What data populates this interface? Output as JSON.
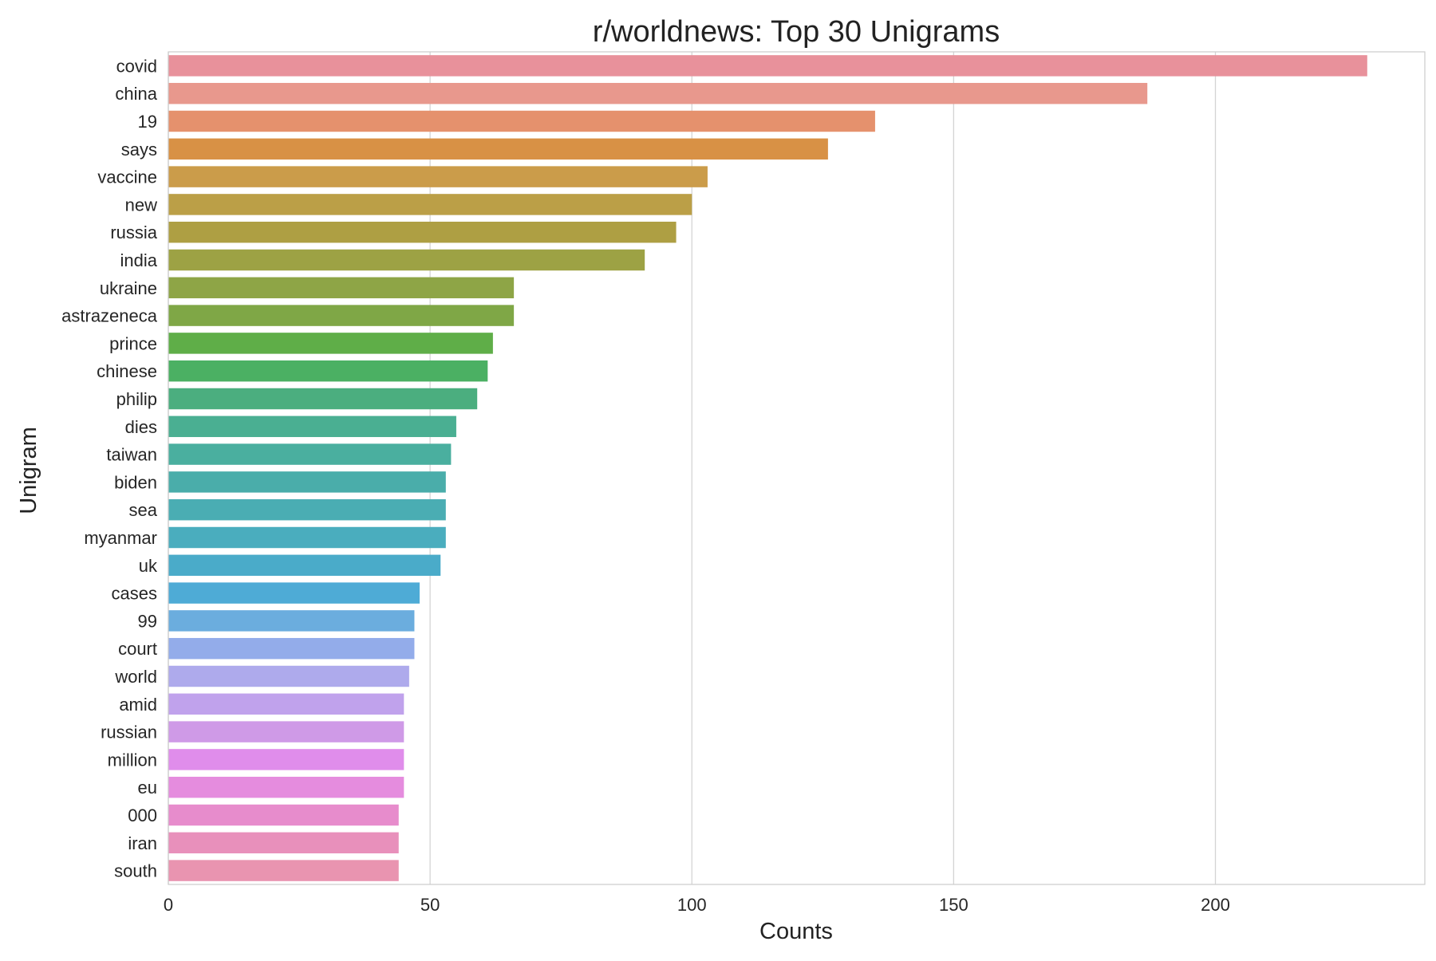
{
  "chart_data": {
    "type": "bar",
    "orientation": "horizontal",
    "title": "r/worldnews: Top 30 Unigrams",
    "xlabel": "Counts",
    "ylabel": "Unigram",
    "xlim": [
      0,
      240
    ],
    "xticks": [
      0,
      50,
      100,
      150,
      200
    ],
    "grid": "on (vertical)",
    "legend": "none",
    "categories": [
      "covid",
      "china",
      "19",
      "says",
      "vaccine",
      "new",
      "russia",
      "india",
      "ukraine",
      "astrazeneca",
      "prince",
      "chinese",
      "philip",
      "dies",
      "taiwan",
      "biden",
      "sea",
      "myanmar",
      "uk",
      "cases",
      "99",
      "court",
      "world",
      "amid",
      "russian",
      "million",
      "eu",
      "000",
      "iran",
      "south"
    ],
    "values": [
      229,
      187,
      135,
      126,
      103,
      100,
      97,
      91,
      66,
      66,
      62,
      61,
      59,
      55,
      54,
      53,
      53,
      53,
      52,
      48,
      47,
      47,
      46,
      45,
      45,
      45,
      45,
      44,
      44,
      44
    ],
    "colors": [
      "#e8919b",
      "#e8988d",
      "#e5916d",
      "#d89145",
      "#cb9c4a",
      "#bb9f47",
      "#ae9f43",
      "#9da244",
      "#8ea546",
      "#7fa746",
      "#5fae48",
      "#4bb063",
      "#4bae7f",
      "#4aaf92",
      "#4aaf9f",
      "#4aadaa",
      "#4aadb3",
      "#4aadbe",
      "#4aabc9",
      "#4eabd6",
      "#6badde",
      "#93acea",
      "#aeaaec",
      "#c0a2ec",
      "#cf9ae7",
      "#e08deb",
      "#e58cde",
      "#e78ccc",
      "#e890bb",
      "#e994b0"
    ]
  }
}
